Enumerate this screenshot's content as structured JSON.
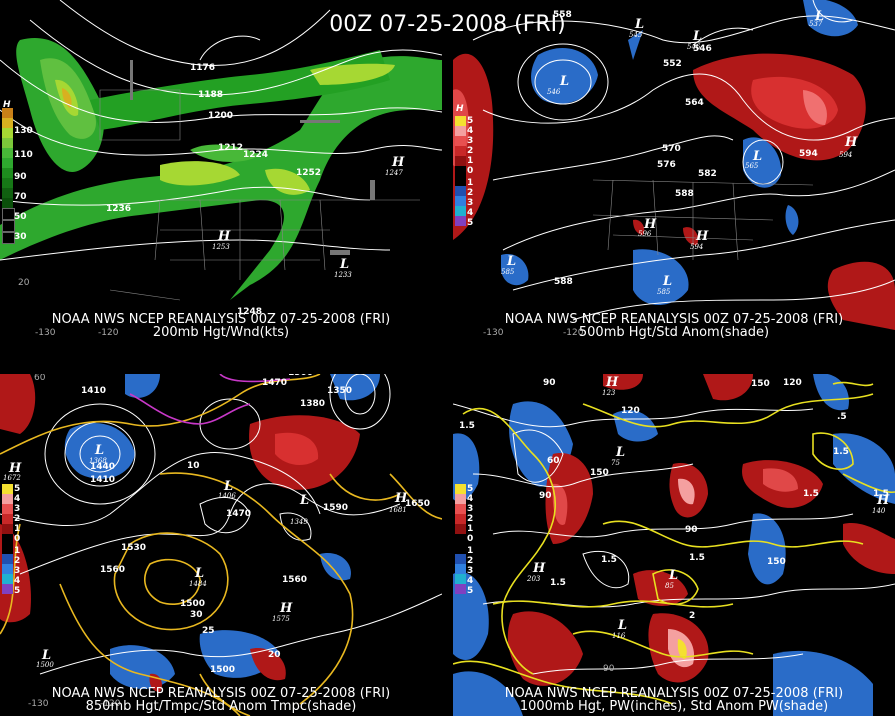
{
  "title": "00Z 07-25-2008 (FRI)",
  "panels": [
    {
      "caption1": "NOAA NWS NCEP REANALYSIS 00Z 07-25-2008 (FRI)",
      "caption2": "200mb Hgt/Wnd(kts)",
      "legend_top": "H",
      "legend": [
        "130",
        "110",
        "90",
        "70",
        "50",
        "30"
      ],
      "contour_labels": [
        "1176",
        "1188",
        "1200",
        "1212",
        "1224",
        "1236",
        "1248",
        "1252"
      ],
      "highs": [
        {
          "letter": "H",
          "value": "1247"
        },
        {
          "letter": "H",
          "value": "1253"
        },
        {
          "letter": "L",
          "value": "1233"
        }
      ],
      "ticks": [
        "-130",
        "-120",
        "20"
      ]
    },
    {
      "caption1": "NOAA NWS NCEP REANALYSIS 00Z 07-25-2008 (FRI)",
      "caption2": "500mb Hgt/Std Anom(shade)",
      "legend_top": "H",
      "legend": [
        "5",
        "4",
        "3",
        "2",
        "1",
        "0",
        "1",
        "2",
        "3",
        "4",
        "5"
      ],
      "contour_labels": [
        "558",
        "552",
        "564",
        "570",
        "576",
        "582",
        "588",
        "594",
        "546",
        "588"
      ],
      "highs": [
        {
          "letter": "L",
          "value": "546"
        },
        {
          "letter": "L",
          "value": "537"
        },
        {
          "letter": "L",
          "value": "545"
        },
        {
          "letter": "L",
          "value": "546"
        },
        {
          "letter": "L",
          "value": "565"
        },
        {
          "letter": "L",
          "value": "585"
        },
        {
          "letter": "L",
          "value": "585"
        },
        {
          "letter": "H",
          "value": "596"
        },
        {
          "letter": "H",
          "value": "594"
        },
        {
          "letter": "H",
          "value": "594"
        }
      ],
      "ticks": [
        "-130",
        "-120"
      ]
    },
    {
      "caption1": "NOAA NWS NCEP REANALYSIS 00Z 07-25-2008 (FRI)",
      "caption2": "850mb Hgt/Tmpc/Std Anom Tmpc(shade)",
      "legend_top": "H",
      "legend": [
        "5",
        "4",
        "3",
        "2",
        "1",
        "0",
        "1",
        "2",
        "3",
        "4",
        "5"
      ],
      "contour_labels": [
        "1410",
        "1500",
        "1470",
        "1350",
        "1380",
        "1440",
        "1410",
        "1530",
        "1560",
        "1500",
        "1470",
        "1590",
        "1650",
        "1560",
        "1500",
        "10",
        "20",
        "25",
        "30"
      ],
      "highs": [
        {
          "letter": "H",
          "value": "1672"
        },
        {
          "letter": "L",
          "value": "1368"
        },
        {
          "letter": "L",
          "value": "1406"
        },
        {
          "letter": "L",
          "value": "1484"
        },
        {
          "letter": "H",
          "value": "1575"
        },
        {
          "letter": "H",
          "value": "1681"
        },
        {
          "letter": "L",
          "value": "1500"
        },
        {
          "letter": "L",
          "value": "1349"
        }
      ],
      "ticks": [
        "-130",
        "-120",
        "60"
      ]
    },
    {
      "caption1": "NOAA NWS NCEP REANALYSIS 00Z 07-25-2008 (FRI)",
      "caption2": "1000mb Hgt, PW(inches), Std Anom PW(shade)",
      "legend_top": "H",
      "legend": [
        "5",
        "4",
        "3",
        "2",
        "1",
        "0",
        "1",
        "2",
        "3",
        "4",
        "5"
      ],
      "contour_labels": [
        "90",
        "120",
        "150",
        "60",
        "90",
        "150",
        "120",
        "1.5",
        "1.5",
        "1.5",
        "1.5",
        "90",
        "150",
        "1.5",
        "2",
        "1.5",
        ".5",
        "1.5"
      ],
      "highs": [
        {
          "letter": "H",
          "value": "203"
        },
        {
          "letter": "L",
          "value": "75"
        },
        {
          "letter": "L",
          "value": "85"
        },
        {
          "letter": "H",
          "value": "123"
        },
        {
          "letter": "L",
          "value": "116"
        },
        {
          "letter": "H",
          "value": "140"
        }
      ],
      "ticks": [
        "90"
      ]
    }
  ]
}
